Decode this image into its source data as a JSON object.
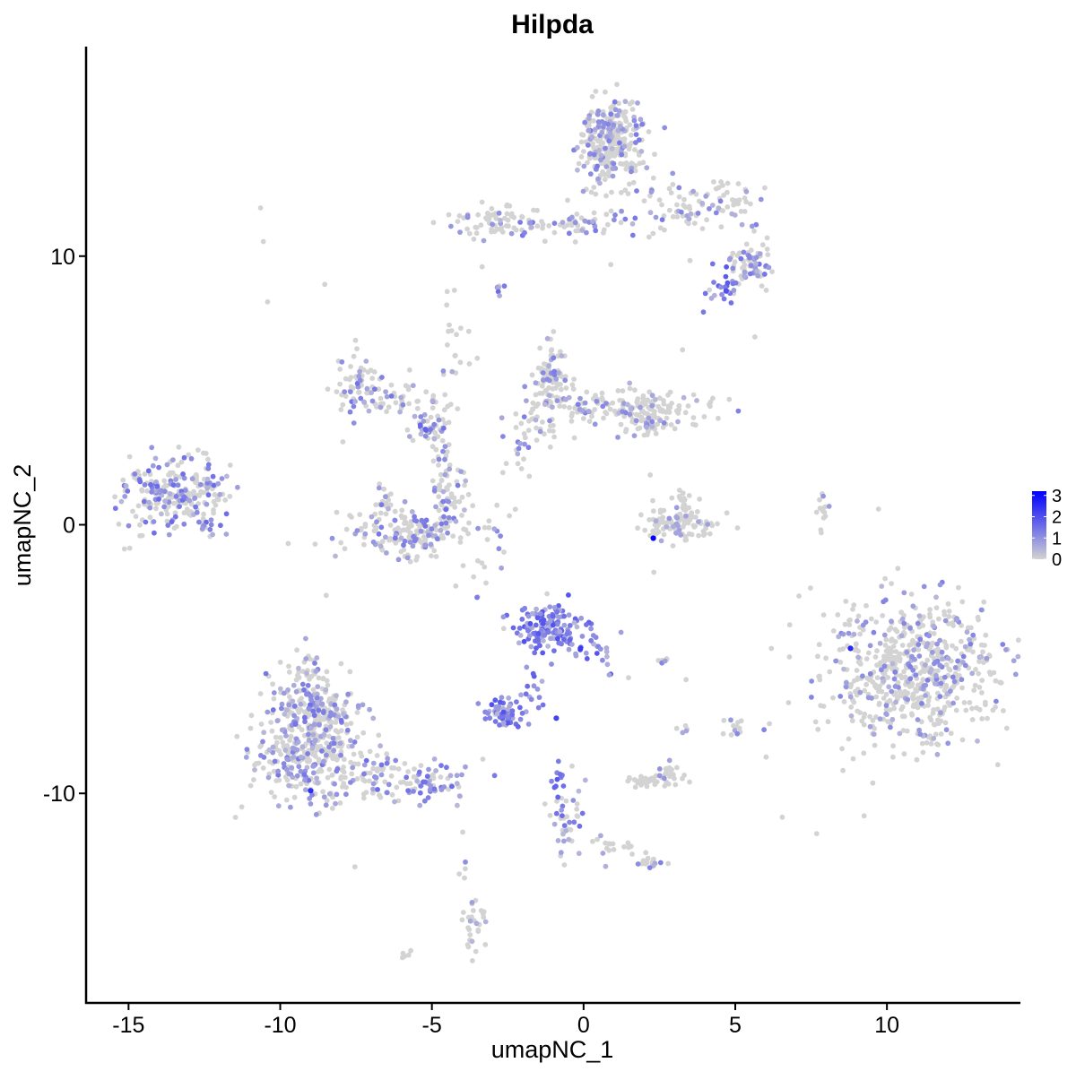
{
  "chart_data": {
    "type": "scatter",
    "title": "Hilpda",
    "xlabel": "umapNC_1",
    "ylabel": "umapNC_2",
    "xlim": [
      -16.4,
      14.4
    ],
    "ylim": [
      -17.8,
      17.8
    ],
    "x_ticks": [
      -15,
      -10,
      -5,
      0,
      5,
      10
    ],
    "x_tick_labels": [
      "-15",
      "-10",
      "-5",
      "0",
      "5",
      "10"
    ],
    "y_ticks": [
      -10,
      0,
      10
    ],
    "y_tick_labels": [
      "-10",
      "0",
      "10"
    ],
    "grid": false,
    "legend": {
      "placement": "right",
      "type": "colorbar",
      "min": 0,
      "max": 3.2,
      "ticks": [
        0,
        1,
        2,
        3
      ],
      "tick_labels": [
        "0",
        "1",
        "2",
        "3"
      ],
      "color_low": "#d3d3d3",
      "color_high": "#0000ff"
    },
    "clusters": [
      {
        "cx": 0.9,
        "cy": 14.2,
        "sx": 0.55,
        "sy": 0.75,
        "n": 300,
        "expr": 0.3
      },
      {
        "cx": 0.3,
        "cy": 11.2,
        "sx": 1.8,
        "sy": 0.3,
        "n": 80,
        "expr": 0.35
      },
      {
        "cx": -2.8,
        "cy": 11.3,
        "sx": 0.8,
        "sy": 0.35,
        "n": 60,
        "expr": 0.15
      },
      {
        "cx": 3.6,
        "cy": 12.0,
        "sx": 0.9,
        "sy": 0.5,
        "n": 60,
        "expr": 0.2
      },
      {
        "cx": 5.5,
        "cy": 9.8,
        "sx": 0.35,
        "sy": 0.4,
        "n": 70,
        "expr": 0.35
      },
      {
        "cx": 4.6,
        "cy": 8.9,
        "sx": 0.3,
        "sy": 0.3,
        "n": 25,
        "expr": 0.8
      },
      {
        "cx": 5.2,
        "cy": 11.8,
        "sx": 0.3,
        "sy": 0.4,
        "n": 20,
        "expr": 0.4
      },
      {
        "cx": -2.8,
        "cy": 8.7,
        "sx": 0.08,
        "sy": 0.12,
        "n": 6,
        "expr": 0.9
      },
      {
        "cx": -1.1,
        "cy": 5.5,
        "sx": 0.3,
        "sy": 0.6,
        "n": 90,
        "expr": 0.3
      },
      {
        "cx": 1.2,
        "cy": 4.4,
        "sx": 1.4,
        "sy": 0.3,
        "n": 130,
        "expr": 0.25
      },
      {
        "cx": 2.2,
        "cy": 4.0,
        "sx": 0.5,
        "sy": 0.3,
        "n": 70,
        "expr": 0.2
      },
      {
        "cx": -1.6,
        "cy": 3.8,
        "sx": 0.6,
        "sy": 0.45,
        "n": 40,
        "expr": 0.3
      },
      {
        "cx": -7.4,
        "cy": 5.3,
        "sx": 0.35,
        "sy": 0.5,
        "n": 60,
        "expr": 0.4
      },
      {
        "cx": -6.2,
        "cy": 4.6,
        "sx": 0.7,
        "sy": 0.35,
        "n": 50,
        "expr": 0.35
      },
      {
        "cx": -5.0,
        "cy": 3.6,
        "sx": 0.35,
        "sy": 0.3,
        "n": 40,
        "expr": 0.55
      },
      {
        "cx": -4.3,
        "cy": 5.8,
        "sx": 0.4,
        "sy": 1.2,
        "n": 25,
        "expr": 0.2
      },
      {
        "cx": -5.6,
        "cy": -0.3,
        "sx": 1.0,
        "sy": 0.45,
        "n": 180,
        "expr": 0.35
      },
      {
        "cx": -4.4,
        "cy": 0.9,
        "sx": 0.35,
        "sy": 0.6,
        "n": 50,
        "expr": 0.4
      },
      {
        "cx": -6.6,
        "cy": 0.8,
        "sx": 0.25,
        "sy": 0.35,
        "n": 20,
        "expr": 0.3
      },
      {
        "cx": -4.6,
        "cy": 2.4,
        "sx": 0.15,
        "sy": 0.6,
        "n": 20,
        "expr": 0.2
      },
      {
        "cx": -13.5,
        "cy": 1.1,
        "sx": 0.8,
        "sy": 0.65,
        "n": 220,
        "expr": 0.45
      },
      {
        "cx": -12.3,
        "cy": 1.6,
        "sx": 0.35,
        "sy": 0.45,
        "n": 25,
        "expr": 0.35
      },
      {
        "cx": -12.5,
        "cy": -0.1,
        "sx": 0.3,
        "sy": 0.1,
        "n": 12,
        "expr": 0.7
      },
      {
        "cx": 3.2,
        "cy": 0.0,
        "sx": 0.7,
        "sy": 0.35,
        "n": 100,
        "expr": 0.08
      },
      {
        "cx": 3.3,
        "cy": 0.8,
        "sx": 0.2,
        "sy": 0.3,
        "n": 20,
        "expr": 0.1
      },
      {
        "cx": 7.9,
        "cy": 0.4,
        "sx": 0.1,
        "sy": 0.35,
        "n": 15,
        "expr": 0.05
      },
      {
        "cx": 10.8,
        "cy": -5.4,
        "sx": 1.45,
        "sy": 1.35,
        "n": 650,
        "expr": 0.25
      },
      {
        "cx": -1.1,
        "cy": -3.8,
        "sx": 0.55,
        "sy": 0.45,
        "n": 150,
        "expr": 1.7
      },
      {
        "cx": 0.6,
        "cy": -4.6,
        "sx": 0.35,
        "sy": 0.45,
        "n": 20,
        "expr": 1.0
      },
      {
        "cx": -2.6,
        "cy": -7.0,
        "sx": 0.35,
        "sy": 0.25,
        "n": 55,
        "expr": 1.55
      },
      {
        "cx": -1.7,
        "cy": -6.2,
        "sx": 0.25,
        "sy": 0.45,
        "n": 15,
        "expr": 0.9
      },
      {
        "cx": -9.0,
        "cy": -8.2,
        "sx": 0.9,
        "sy": 1.1,
        "n": 420,
        "expr": 0.35
      },
      {
        "cx": -9.0,
        "cy": -6.4,
        "sx": 0.45,
        "sy": 0.7,
        "n": 110,
        "expr": 0.4
      },
      {
        "cx": -5.5,
        "cy": -9.6,
        "sx": 0.9,
        "sy": 0.4,
        "n": 80,
        "expr": 0.45
      },
      {
        "cx": -7.0,
        "cy": -9.2,
        "sx": 0.6,
        "sy": 0.35,
        "n": 40,
        "expr": 0.3
      },
      {
        "cx": 2.2,
        "cy": -9.5,
        "sx": 0.4,
        "sy": 0.15,
        "n": 40,
        "expr": 0.15
      },
      {
        "cx": 2.9,
        "cy": -9.2,
        "sx": 0.25,
        "sy": 0.2,
        "n": 15,
        "expr": 0.2
      },
      {
        "cx": -0.5,
        "cy": -10.8,
        "sx": 0.3,
        "sy": 0.8,
        "n": 40,
        "expr": 0.45
      },
      {
        "cx": -0.9,
        "cy": -9.5,
        "sx": 0.1,
        "sy": 0.3,
        "n": 10,
        "expr": 0.9
      },
      {
        "cx": 2.3,
        "cy": -12.6,
        "sx": 0.2,
        "sy": 0.15,
        "n": 15,
        "expr": 0.3
      },
      {
        "cx": 1.3,
        "cy": -12.0,
        "sx": 0.5,
        "sy": 0.2,
        "n": 10,
        "expr": 0.1
      },
      {
        "cx": -3.6,
        "cy": -15.0,
        "sx": 0.2,
        "sy": 0.5,
        "n": 30,
        "expr": 0.3
      },
      {
        "cx": -3.9,
        "cy": -12.6,
        "sx": 0.1,
        "sy": 0.4,
        "n": 5,
        "expr": 0.1
      },
      {
        "cx": 5.0,
        "cy": -7.5,
        "sx": 0.15,
        "sy": 0.2,
        "n": 12,
        "expr": 0.2
      },
      {
        "cx": 3.3,
        "cy": -7.7,
        "sx": 0.15,
        "sy": 0.1,
        "n": 5,
        "expr": 0.2
      },
      {
        "cx": 2.7,
        "cy": -5.1,
        "sx": 0.1,
        "sy": 0.1,
        "n": 6,
        "expr": 0.3
      },
      {
        "cx": -6.0,
        "cy": -16.0,
        "sx": 0.15,
        "sy": 0.1,
        "n": 5,
        "expr": 0.0
      },
      {
        "cx": -3.2,
        "cy": -2.2,
        "sx": 0.6,
        "sy": 1.0,
        "n": 15,
        "expr": 0.3
      },
      {
        "cx": -2.2,
        "cy": 2.6,
        "sx": 0.2,
        "sy": 0.6,
        "n": 10,
        "expr": 0.3
      },
      {
        "cx": 0.6,
        "cy": -12.0,
        "sx": 0.2,
        "sy": 0.3,
        "n": 8,
        "expr": 0.1
      }
    ],
    "highlight_points": [
      {
        "x": 2.3,
        "y": -0.5,
        "value": 3.2
      },
      {
        "x": -9.0,
        "y": -9.9,
        "value": 2.5
      },
      {
        "x": 8.8,
        "y": -4.6,
        "value": 2.6
      },
      {
        "x": -0.9,
        "y": -7.2,
        "value": 2.2
      },
      {
        "x": -0.1,
        "y": -4.6,
        "value": 2.3
      },
      {
        "x": 4.7,
        "y": 8.7,
        "value": 2.0
      }
    ]
  }
}
